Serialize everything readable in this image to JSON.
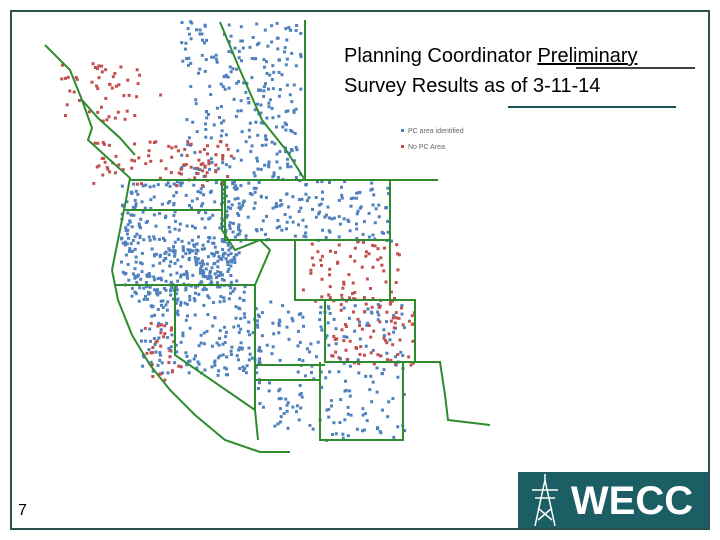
{
  "title": {
    "line1_text": "Planning Coordinator",
    "line1_underlined": "Preliminary",
    "line2": "Survey Results as of 3-11-14"
  },
  "legend": {
    "items": [
      {
        "label": "PC area identified",
        "color": "#4f81bd"
      },
      {
        "label": "No PC Area",
        "color": "#c0504d"
      }
    ]
  },
  "footer": {
    "page_number": "7",
    "logo_text": "WECC"
  }
}
